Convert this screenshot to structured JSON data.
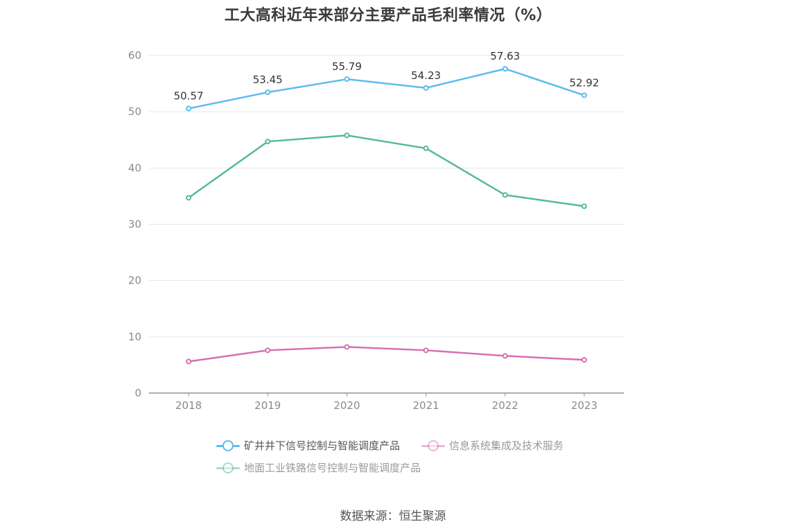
{
  "chart_data": {
    "type": "line",
    "title": "工大高科近年来部分主要产品毛利率情况（%）",
    "x": [
      "2018",
      "2019",
      "2020",
      "2021",
      "2022",
      "2023"
    ],
    "ylim": [
      0,
      60
    ],
    "yticks": [
      0,
      10,
      20,
      30,
      40,
      50,
      60
    ],
    "grid": true,
    "legend_position": "bottom",
    "series": [
      {
        "name": "矿井井下信号控制与智能调度产品",
        "color": "#5bbcee",
        "values": [
          50.57,
          53.45,
          55.79,
          54.23,
          57.63,
          52.92
        ],
        "show_labels": true,
        "legend_active": true
      },
      {
        "name": "信息系统集成及技术服务",
        "color": "#d66fb2",
        "values": [
          5.6,
          7.6,
          8.2,
          7.6,
          6.6,
          5.9
        ],
        "show_labels": false,
        "legend_active": false
      },
      {
        "name": "地面工业铁路信号控制与智能调度产品",
        "color": "#56b8a0",
        "values": [
          34.7,
          44.7,
          45.8,
          43.5,
          35.2,
          33.2
        ],
        "show_labels": false,
        "legend_active": false
      }
    ]
  },
  "source": "数据来源：恒生聚源"
}
